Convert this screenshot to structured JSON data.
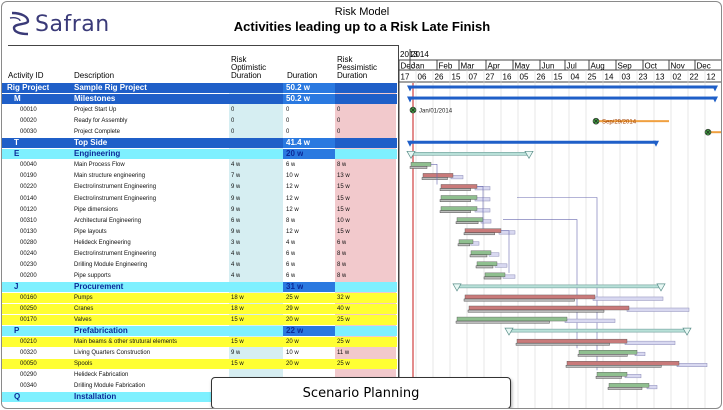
{
  "logo": {
    "text": "Safran",
    "icon": "safran-logo-icon"
  },
  "titles": {
    "model": "Risk Model",
    "main": "Activities leading up to a Risk Late Finish"
  },
  "headers": {
    "activity_id": "Activity ID",
    "description": "Description",
    "optimistic": [
      "Risk",
      "Optimistic",
      "Duration"
    ],
    "duration": "Duration",
    "pessimistic": [
      "Risk",
      "Pessimistic",
      "Duration"
    ]
  },
  "timeline": {
    "years": [
      "2013",
      "2014"
    ],
    "months": [
      "Dec",
      "Jan",
      "Feb",
      "Mar",
      "Apr",
      "May",
      "Jun",
      "Jul",
      "Aug",
      "Sep",
      "Oct",
      "Nov",
      "Dec"
    ],
    "days": [
      "17",
      "06",
      "26",
      "15",
      "07",
      "27",
      "16",
      "05",
      "26",
      "15",
      "04",
      "25",
      "14",
      "03",
      "23",
      "13",
      "02",
      "22",
      "12"
    ]
  },
  "rows": [
    {
      "type": "proj",
      "id": "Rig Project",
      "desc": "Sample Rig Project",
      "opt": "",
      "dur": "50.2 w",
      "pes": ""
    },
    {
      "type": "group",
      "id": "M",
      "desc": "Milestones",
      "opt": "",
      "dur": "50.2 w",
      "pes": ""
    },
    {
      "type": "task",
      "id": "00010",
      "desc": "Project Start Up",
      "opt": "0",
      "dur": "0",
      "pes": "0"
    },
    {
      "type": "task",
      "id": "00020",
      "desc": "Ready for Assembly",
      "opt": "0",
      "dur": "0",
      "pes": "0"
    },
    {
      "type": "task",
      "id": "00030",
      "desc": "Project Complete",
      "opt": "0",
      "dur": "0",
      "pes": "0"
    },
    {
      "type": "group",
      "id": "T",
      "desc": "Top Side",
      "opt": "",
      "dur": "41.4 w",
      "pes": ""
    },
    {
      "type": "cat",
      "id": "E",
      "desc": "Engineering",
      "opt": "",
      "dur": "20 w",
      "pes": ""
    },
    {
      "type": "task",
      "id": "00040",
      "desc": "Main Process Flow",
      "opt": "4 w",
      "dur": "6 w",
      "pes": "8 w"
    },
    {
      "type": "task",
      "id": "00190",
      "desc": "Main structure engineering",
      "opt": "7 w",
      "dur": "10 w",
      "pes": "13 w"
    },
    {
      "type": "task",
      "id": "00220",
      "desc": "Electro/instrument Engineering",
      "opt": "9 w",
      "dur": "12 w",
      "pes": "15 w"
    },
    {
      "type": "task",
      "id": "00140",
      "desc": "Electro/instrument Engineering",
      "opt": "9 w",
      "dur": "12 w",
      "pes": "15 w"
    },
    {
      "type": "task",
      "id": "00120",
      "desc": "Pipe dimensions",
      "opt": "9 w",
      "dur": "12 w",
      "pes": "15 w"
    },
    {
      "type": "task",
      "id": "00310",
      "desc": "Architectural Engineering",
      "opt": "6 w",
      "dur": "8 w",
      "pes": "10 w"
    },
    {
      "type": "task",
      "id": "00130",
      "desc": "Pipe layouts",
      "opt": "9 w",
      "dur": "12 w",
      "pes": "15 w"
    },
    {
      "type": "task",
      "id": "00280",
      "desc": "Helideck Engineering",
      "opt": "3 w",
      "dur": "4 w",
      "pes": "6 w"
    },
    {
      "type": "task",
      "id": "00240",
      "desc": "Electro/instrument Engineering",
      "opt": "4 w",
      "dur": "6 w",
      "pes": "8 w"
    },
    {
      "type": "task",
      "id": "00230",
      "desc": "Drilling Module Engineering",
      "opt": "4 w",
      "dur": "6 w",
      "pes": "8 w"
    },
    {
      "type": "task",
      "id": "00200",
      "desc": "Pipe supports",
      "opt": "4 w",
      "dur": "6 w",
      "pes": "8 w"
    },
    {
      "type": "cat",
      "id": "J",
      "desc": "Procurement",
      "opt": "",
      "dur": "31 w",
      "pes": ""
    },
    {
      "type": "yellow",
      "id": "00160",
      "desc": "Pumps",
      "opt": "18 w",
      "dur": "25 w",
      "pes": "32 w"
    },
    {
      "type": "yellow",
      "id": "00250",
      "desc": "Cranes",
      "opt": "18 w",
      "dur": "29 w",
      "pes": "40 w"
    },
    {
      "type": "yellow",
      "id": "00170",
      "desc": "Valves",
      "opt": "15 w",
      "dur": "20 w",
      "pes": "25 w"
    },
    {
      "type": "cat",
      "id": "P",
      "desc": "Prefabrication",
      "opt": "",
      "dur": "22 w",
      "pes": ""
    },
    {
      "type": "yellow",
      "id": "00210",
      "desc": "Main beams & other strutural elements",
      "opt": "15 w",
      "dur": "20 w",
      "pes": "25 w"
    },
    {
      "type": "task",
      "id": "00320",
      "desc": "Living Quarters Construction",
      "opt": "9 w",
      "dur": "10 w",
      "pes": "11 w"
    },
    {
      "type": "yellow",
      "id": "00050",
      "desc": "Spools",
      "opt": "15 w",
      "dur": "20 w",
      "pes": "25 w"
    },
    {
      "type": "task",
      "id": "00290",
      "desc": "Helideck Fabrication",
      "opt": "",
      "dur": "",
      "pes": ""
    },
    {
      "type": "task",
      "id": "00340",
      "desc": "Drilling Module Fabrication",
      "opt": "",
      "dur": "",
      "pes": ""
    },
    {
      "type": "cat",
      "id": "Q",
      "desc": "Installation",
      "opt": "",
      "dur": "",
      "pes": ""
    }
  ],
  "milestones": [
    {
      "label": "Jan/01/2014"
    },
    {
      "label": "Sep/29/2014"
    },
    {
      "label": ""
    }
  ],
  "colors": {
    "summary": "#1f5fc8",
    "category_bar": "#b8e0d8",
    "critical_bar": "#c97a7a",
    "normal_bar": "#8fbf8f",
    "pessimistic_bar": "#d8d8f0"
  },
  "overlay": {
    "label": "Scenario Planning"
  }
}
